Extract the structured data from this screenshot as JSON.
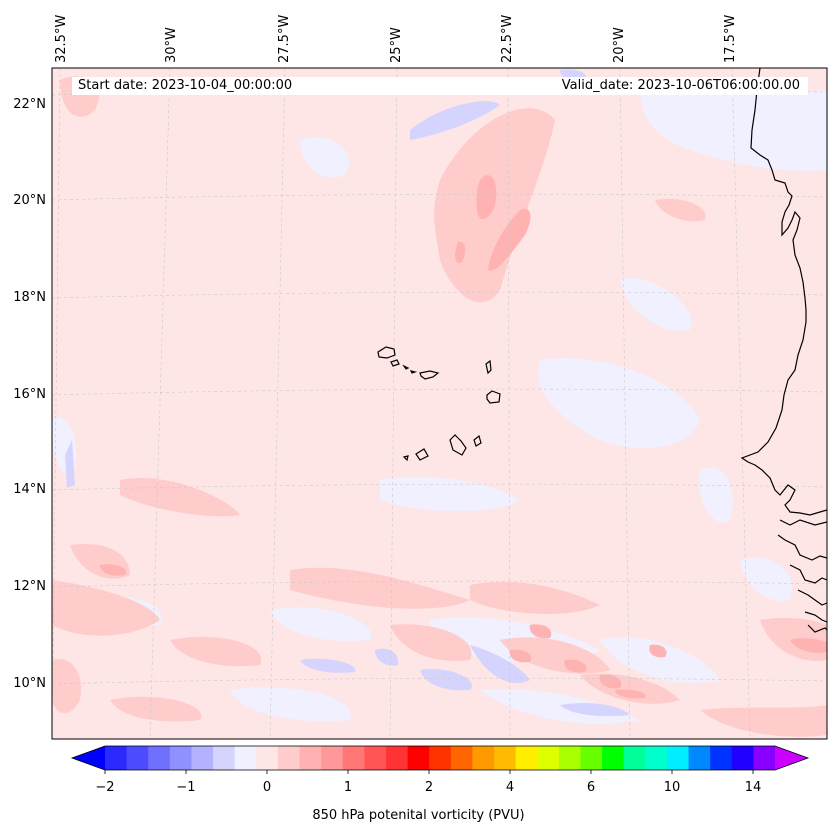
{
  "map": {
    "start_date_text": "Start date: 2023-10-04_00:00:00",
    "valid_date_text": "Valid_date: 2023-10-06T06:00:00.00",
    "lon_labels": [
      "32.5°W",
      "30°W",
      "27.5°W",
      "25°W",
      "22.5°W",
      "20°W",
      "17.5°W"
    ],
    "lat_labels": [
      "22°N",
      "20°N",
      "18°N",
      "16°N",
      "14°N",
      "12°N",
      "10°N"
    ],
    "field_name": "850 hPa potential vorticity"
  },
  "colorbar": {
    "label": "850 hPa potenital vorticity (PVU)",
    "tick_labels": [
      "−2",
      "−1",
      "0",
      "1",
      "2",
      "4",
      "6",
      "10",
      "14"
    ],
    "colors": [
      "#0000ff",
      "#2a2aff",
      "#4d4dff",
      "#7070ff",
      "#9090ff",
      "#b2b2ff",
      "#d4d4ff",
      "#f0f0ff",
      "#ffe6e6",
      "#ffcccc",
      "#ffb2b2",
      "#ff9999",
      "#ff7777",
      "#ff5555",
      "#ff3333",
      "#ff0000",
      "#ff3300",
      "#ff6600",
      "#ff9900",
      "#ffbb00",
      "#ffee00",
      "#ddff00",
      "#aaff00",
      "#66ff00",
      "#00ff00",
      "#00ff99",
      "#00ffcc",
      "#00eeff",
      "#0088ff",
      "#0033ff",
      "#2200ff",
      "#8800ff",
      "#cc00ff"
    ]
  }
}
